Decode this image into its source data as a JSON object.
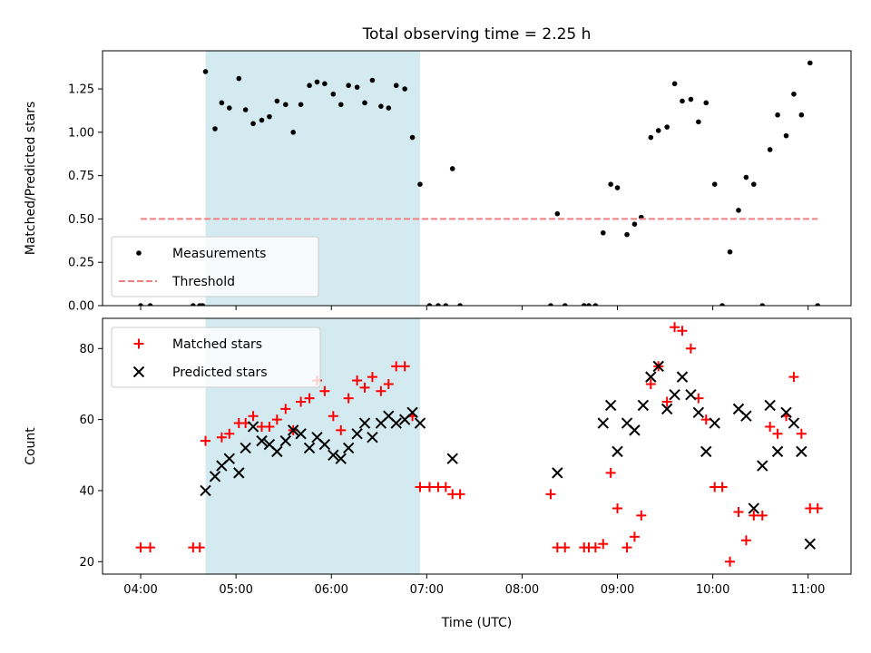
{
  "chart_data": [
    {
      "type": "scatter",
      "title": "Total observing time = 2.25 h",
      "ylabel": "Matched/Predicted stars",
      "xlabel": "",
      "x_unit": "hours (UTC)",
      "xlim": [
        3.6,
        11.45
      ],
      "ylim": [
        0,
        1.47
      ],
      "xticks": [
        4,
        5,
        6,
        7,
        8,
        9,
        10,
        11
      ],
      "xtick_labels": [
        "04:00",
        "05:00",
        "06:00",
        "07:00",
        "08:00",
        "09:00",
        "10:00",
        "11:00"
      ],
      "xtick_labels_visible": false,
      "yticks": [
        0,
        0.25,
        0.5,
        0.75,
        1.0,
        1.25
      ],
      "ytick_labels": [
        "0.00",
        "0.25",
        "0.50",
        "0.75",
        "1.00",
        "1.25"
      ],
      "shaded_span": [
        4.68,
        6.93
      ],
      "shaded_color": "#d4eaf1",
      "legend_position": "lower left",
      "series": [
        {
          "name": "Measurements",
          "style": "dot",
          "color": "#000000",
          "x": [
            4.0,
            4.1,
            4.55,
            4.62,
            4.65,
            4.68,
            4.78,
            4.85,
            4.93,
            5.03,
            5.1,
            5.18,
            5.27,
            5.35,
            5.43,
            5.52,
            5.6,
            5.68,
            5.77,
            5.85,
            5.93,
            6.02,
            6.1,
            6.18,
            6.27,
            6.35,
            6.43,
            6.52,
            6.6,
            6.68,
            6.77,
            6.85,
            6.93,
            7.03,
            7.12,
            7.2,
            7.27,
            7.35,
            8.3,
            8.37,
            8.45,
            8.65,
            8.7,
            8.77,
            8.85,
            8.93,
            9.0,
            9.1,
            9.18,
            9.25,
            9.35,
            9.43,
            9.52,
            9.6,
            9.68,
            9.77,
            9.85,
            9.93,
            10.02,
            10.1,
            10.18,
            10.27,
            10.35,
            10.43,
            10.52,
            10.6,
            10.68,
            10.77,
            10.85,
            10.93,
            11.02,
            11.1
          ],
          "y": [
            0,
            0,
            0,
            0,
            0,
            1.35,
            1.02,
            1.17,
            1.14,
            1.31,
            1.13,
            1.05,
            1.07,
            1.09,
            1.18,
            1.16,
            1.0,
            1.16,
            1.27,
            1.29,
            1.28,
            1.22,
            1.16,
            1.27,
            1.26,
            1.17,
            1.3,
            1.15,
            1.14,
            1.27,
            1.25,
            0.97,
            0.7,
            0,
            0,
            0,
            0.79,
            0,
            0,
            0.53,
            0,
            0,
            0,
            0,
            0.42,
            0.7,
            0.68,
            0.41,
            0.47,
            0.51,
            0.97,
            1.01,
            1.03,
            1.28,
            1.18,
            1.19,
            1.06,
            1.17,
            0.7,
            0,
            0.31,
            0.55,
            0.74,
            0.7,
            0,
            0.9,
            1.1,
            0.98,
            1.22,
            1.1,
            1.4,
            0
          ]
        },
        {
          "name": "Threshold",
          "style": "dashed-line",
          "color": "#f08080",
          "x": [
            4.0,
            11.1
          ],
          "y": [
            0.5,
            0.5
          ]
        }
      ]
    },
    {
      "type": "scatter",
      "title": "",
      "ylabel": "Count",
      "xlabel": "Time (UTC)",
      "x_unit": "hours (UTC)",
      "xlim": [
        3.6,
        11.45
      ],
      "ylim": [
        16.5,
        88.5
      ],
      "xticks": [
        4,
        5,
        6,
        7,
        8,
        9,
        10,
        11
      ],
      "xtick_labels": [
        "04:00",
        "05:00",
        "06:00",
        "07:00",
        "08:00",
        "09:00",
        "10:00",
        "11:00"
      ],
      "xtick_labels_visible": true,
      "yticks": [
        20,
        40,
        60,
        80
      ],
      "ytick_labels": [
        "20",
        "40",
        "60",
        "80"
      ],
      "shaded_span": [
        4.68,
        6.93
      ],
      "shaded_color": "#d4eaf1",
      "legend_position": "upper left",
      "series": [
        {
          "name": "Matched stars",
          "style": "plus",
          "color": "#ff0000",
          "x": [
            4.0,
            4.1,
            4.55,
            4.62,
            4.68,
            4.85,
            4.93,
            5.03,
            5.1,
            5.18,
            5.27,
            5.35,
            5.43,
            5.52,
            5.6,
            5.68,
            5.77,
            5.85,
            5.93,
            6.02,
            6.1,
            6.18,
            6.27,
            6.35,
            6.43,
            6.52,
            6.6,
            6.68,
            6.77,
            6.85,
            6.93,
            7.03,
            7.12,
            7.2,
            7.27,
            7.35,
            8.3,
            8.37,
            8.45,
            8.65,
            8.7,
            8.77,
            8.85,
            8.93,
            9.0,
            9.1,
            9.18,
            9.25,
            9.35,
            9.43,
            9.52,
            9.6,
            9.68,
            9.77,
            9.85,
            9.93,
            10.02,
            10.1,
            10.18,
            10.27,
            10.35,
            10.43,
            10.52,
            10.6,
            10.68,
            10.77,
            10.85,
            10.93,
            11.02,
            11.1
          ],
          "y": [
            24,
            24,
            24,
            24,
            54,
            55,
            56,
            59,
            59,
            61,
            58,
            58,
            60,
            63,
            57,
            65,
            66,
            71,
            68,
            61,
            57,
            66,
            71,
            69,
            72,
            68,
            70,
            75,
            75,
            61,
            41,
            41,
            41,
            41,
            39,
            39,
            39,
            24,
            24,
            24,
            24,
            24,
            25,
            45,
            35,
            24,
            27,
            33,
            70,
            75,
            65,
            86,
            85,
            80,
            66,
            60,
            41,
            41,
            20,
            34,
            26,
            33,
            33,
            58,
            56,
            61,
            72,
            56,
            35,
            35
          ]
        },
        {
          "name": "Predicted stars",
          "style": "x",
          "color": "#000000",
          "x": [
            4.68,
            4.78,
            4.85,
            4.93,
            5.03,
            5.1,
            5.18,
            5.27,
            5.35,
            5.43,
            5.52,
            5.6,
            5.68,
            5.77,
            5.85,
            5.93,
            6.02,
            6.1,
            6.18,
            6.27,
            6.35,
            6.43,
            6.52,
            6.6,
            6.68,
            6.77,
            6.85,
            6.93,
            7.27,
            8.37,
            8.85,
            8.93,
            9.0,
            9.1,
            9.18,
            9.27,
            9.35,
            9.43,
            9.52,
            9.6,
            9.68,
            9.77,
            9.85,
            9.93,
            10.02,
            10.27,
            10.35,
            10.43,
            10.52,
            10.6,
            10.68,
            10.77,
            10.85,
            10.93,
            11.02
          ],
          "y": [
            40,
            44,
            47,
            49,
            45,
            52,
            58,
            54,
            53,
            51,
            54,
            57,
            56,
            52,
            55,
            53,
            50,
            49,
            52,
            56,
            59,
            55,
            59,
            61,
            59,
            60,
            62,
            59,
            49,
            45,
            59,
            64,
            51,
            59,
            57,
            64,
            72,
            75,
            63,
            67,
            72,
            67,
            62,
            51,
            59,
            63,
            61,
            35,
            47,
            64,
            51,
            62,
            59,
            51,
            25
          ]
        }
      ]
    }
  ]
}
